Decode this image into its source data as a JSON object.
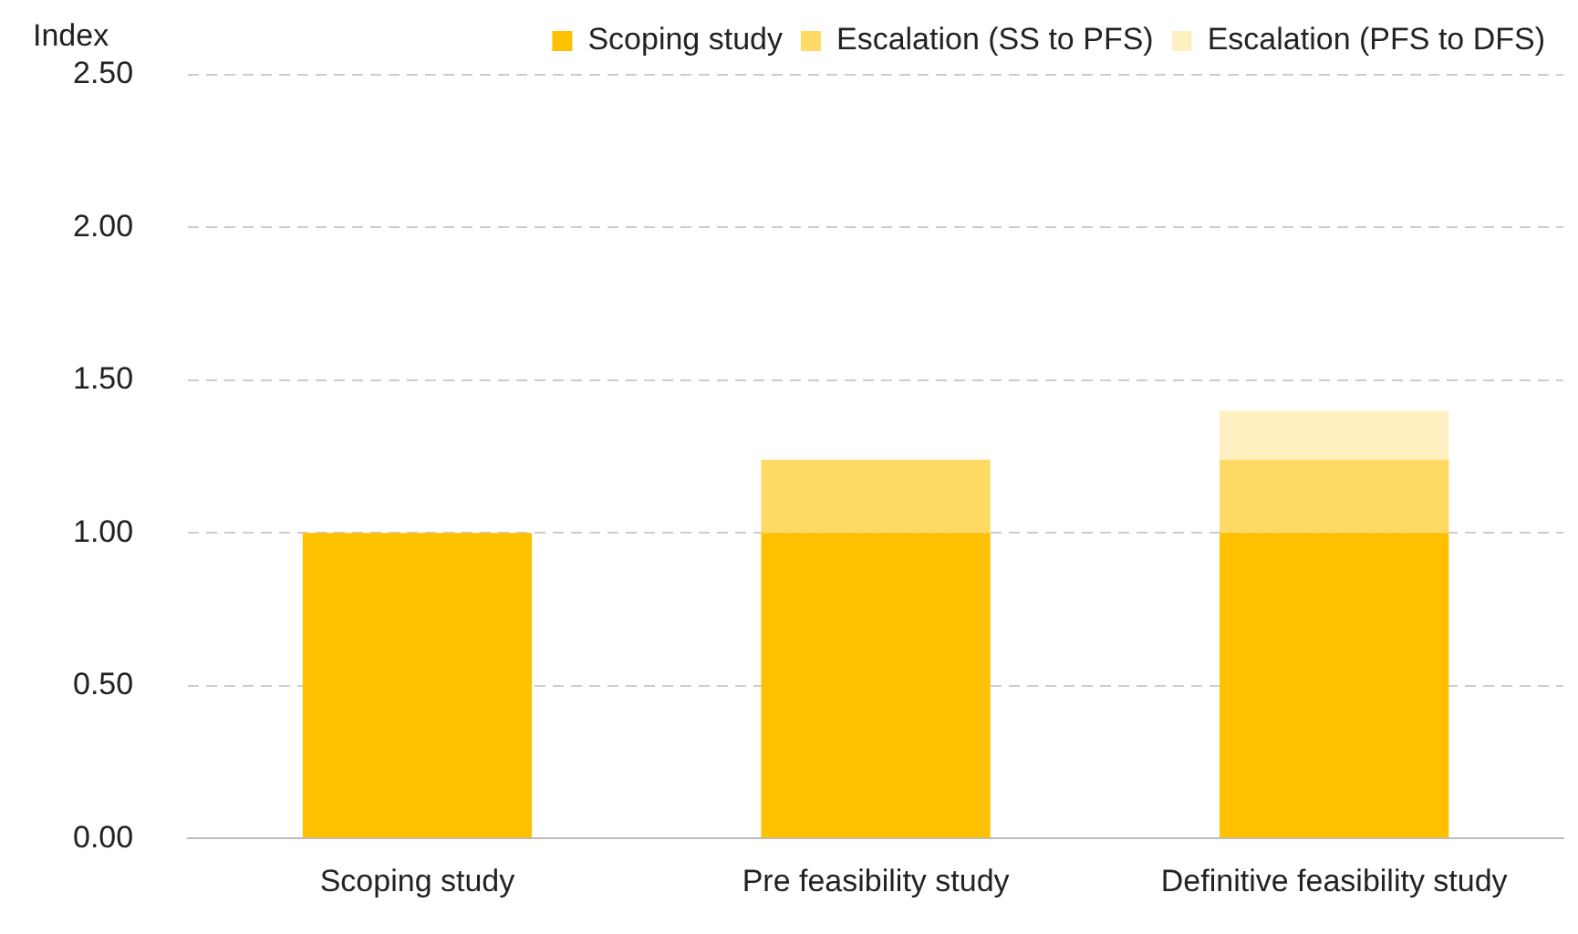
{
  "chart_data": {
    "type": "bar",
    "ylabel": "Index",
    "stacked": true,
    "categories": [
      "Scoping study",
      "Pre feasibility study",
      "Definitive feasibility study"
    ],
    "series": [
      {
        "name": "Scoping study",
        "color": "#ffc000",
        "values": [
          1.0,
          1.0,
          1.0
        ]
      },
      {
        "name": "Escalation (SS to PFS)",
        "color": "#ffdb66",
        "values": [
          null,
          0.24,
          0.24
        ]
      },
      {
        "name": "Escalation (PFS to DFS)",
        "color": "#fff0c2",
        "values": [
          null,
          null,
          0.16
        ]
      }
    ],
    "ylim": [
      0,
      2.5
    ],
    "yticks": [
      {
        "value": 0,
        "label": "0.00"
      },
      {
        "value": 0.5,
        "label": "0.50"
      },
      {
        "value": 1,
        "label": "1.00"
      },
      {
        "value": 1.5,
        "label": "1.50"
      },
      {
        "value": 2,
        "label": "2.00"
      },
      {
        "value": 2.5,
        "label": "2.50"
      }
    ],
    "grid": "y",
    "legend": "top"
  }
}
